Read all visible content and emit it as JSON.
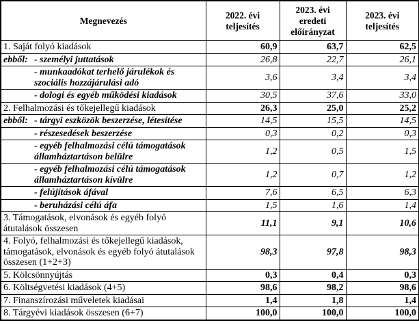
{
  "header": {
    "name": "Megnevezés",
    "col1": "2022. évi teljesítés",
    "col2": "2023. évi eredeti előirányzat",
    "col3": "2023. évi teljesítés"
  },
  "rows": [
    {
      "label": "1. Saját folyó kiadások",
      "prefix": "",
      "style": "main",
      "values": [
        "60,9",
        "63,7",
        "62,5"
      ]
    },
    {
      "label": "- személyi juttatások",
      "prefix": "ebből:",
      "style": "sub",
      "values": [
        "26,8",
        "22,7",
        "26,1"
      ]
    },
    {
      "label": "- munkaadókat terhelő járulékok és szociális hozzájárulási adó",
      "prefix": "",
      "style": "sub",
      "values": [
        "3,6",
        "3,4",
        "3,4"
      ]
    },
    {
      "label": "- dologi és egyéb működési kiadások",
      "prefix": "",
      "style": "sub",
      "values": [
        "30,5",
        "37,6",
        "33,0"
      ]
    },
    {
      "label": "2. Felhalmozási és tőkejellegű kiadások",
      "prefix": "",
      "style": "main",
      "values": [
        "26,3",
        "25,0",
        "25,2"
      ]
    },
    {
      "label": "- tárgyi eszközök beszerzése, létesítése",
      "prefix": "ebből:",
      "style": "sub",
      "values": [
        "14,5",
        "15,5",
        "14,5"
      ]
    },
    {
      "label": "- részesedések beszerzése",
      "prefix": "",
      "style": "sub",
      "values": [
        "0,3",
        "0,2",
        "0,3"
      ]
    },
    {
      "label": "- egyéb felhalmozási célú támogatások államháztartáson belülre",
      "prefix": "",
      "style": "sub",
      "values": [
        "1,2",
        "0,5",
        "1,5"
      ]
    },
    {
      "label": "- egyéb felhalmozási célú támogatások államháztartáson kívülre",
      "prefix": "",
      "style": "sub",
      "values": [
        "1,2",
        "0,7",
        "1,2"
      ]
    },
    {
      "label": "- felújítások áfával",
      "prefix": "",
      "style": "sub",
      "values": [
        "7,6",
        "6,5",
        "6,3"
      ]
    },
    {
      "label": "- beruházási célú áfa",
      "prefix": "",
      "style": "sub",
      "values": [
        "1,5",
        "1,6",
        "1,4"
      ]
    },
    {
      "label": "3. Támogatások, elvonások és egyéb folyó átutalások összesen",
      "prefix": "",
      "style": "total-italic",
      "values": [
        "11,1",
        "9,1",
        "10,6"
      ]
    },
    {
      "label": "4. Folyó, felhalmozási és tőkejellegű kiadások, támogatások, elvonások és egyéb folyó átutalások összesen (1+2+3)",
      "prefix": "",
      "style": "total-italic",
      "values": [
        "98,3",
        "97,8",
        "98,3"
      ]
    },
    {
      "label": "5. Kölcsönnyújtás",
      "prefix": "",
      "style": "main",
      "values": [
        "0,3",
        "0,4",
        "0,3"
      ]
    },
    {
      "label": "6. Költségvetési kiadások (4+5)",
      "prefix": "",
      "style": "main",
      "values": [
        "98,6",
        "98,2",
        "98,6"
      ]
    },
    {
      "label": "7. Finanszírozási műveletek kiadásai",
      "prefix": "",
      "style": "main",
      "values": [
        "1,4",
        "1,8",
        "1,4"
      ]
    },
    {
      "label": "8. Tárgyévi kiadások összesen (6+7)",
      "prefix": "",
      "style": "main",
      "values": [
        "100,0",
        "100,0",
        "100,0"
      ]
    }
  ]
}
